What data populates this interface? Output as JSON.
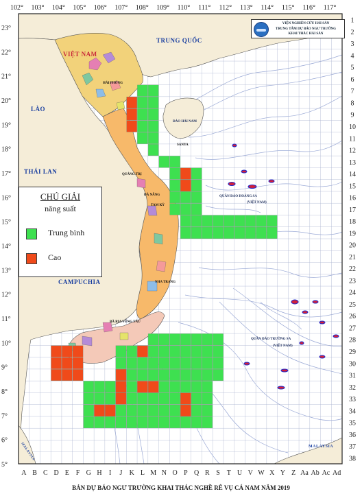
{
  "title": "BẢN DỰ BÁO NGƯ TRƯỜNG KHAI THÁC NGHỀ RÊ VỤ CÁ NAM NĂM 2019",
  "logo": {
    "line1": "VIỆN NGHIÊN CỨU HẢI SẢN",
    "line2": "TRUNG TÂM DỰ BÁO NGƯ TRƯỜNG",
    "line3": "KHAI THÁC HẢI SẢN",
    "icon": "institute-logo-icon"
  },
  "legend": {
    "title": "CHÚ GIẢI",
    "subtitle": "năng suất",
    "items": [
      {
        "label": "Trung bình",
        "color": "#3ee050"
      },
      {
        "label": "Cao",
        "color": "#f04a1a"
      }
    ]
  },
  "axes": {
    "lon_labels": [
      "102°",
      "103°",
      "104°",
      "105°",
      "106°",
      "107°",
      "108°",
      "109°",
      "110°",
      "111°",
      "112°",
      "113°",
      "114°",
      "115°",
      "116°",
      "117°"
    ],
    "lat_labels": [
      "23°",
      "22°",
      "21°",
      "20°",
      "19°",
      "18°",
      "17°",
      "16°",
      "15°",
      "14°",
      "13°",
      "12°",
      "11°",
      "10°",
      "9°",
      "8°",
      "7°",
      "6°",
      "5°"
    ],
    "col_labels": [
      "A",
      "B",
      "C",
      "D",
      "E",
      "F",
      "G",
      "H",
      "I",
      "J",
      "K",
      "L",
      "M",
      "N",
      "O",
      "P",
      "Q",
      "R",
      "S",
      "T",
      "U",
      "V",
      "W",
      "X",
      "Y",
      "Z",
      "Aa",
      "Ab",
      "Ac",
      "Ad"
    ],
    "row_labels": [
      "1",
      "2",
      "3",
      "4",
      "5",
      "6",
      "7",
      "8",
      "9",
      "10",
      "11",
      "12",
      "13",
      "14",
      "15",
      "16",
      "17",
      "18",
      "19",
      "20",
      "21",
      "22",
      "23",
      "24",
      "25",
      "26",
      "27",
      "28",
      "29",
      "30",
      "31",
      "32",
      "33",
      "34",
      "35",
      "36",
      "37",
      "38"
    ]
  },
  "countries": [
    {
      "name": "TRUNG QUỐC"
    },
    {
      "name": "VIỆT NAM"
    },
    {
      "name": "LÀO"
    },
    {
      "name": "THÁI LAN"
    },
    {
      "name": "CAMPUCHIA"
    },
    {
      "name": "MALAYSIA"
    },
    {
      "name": "MALAYSIA"
    }
  ],
  "islands": [
    {
      "name": "ĐẢO HẢI NAM"
    },
    {
      "name": "QUẦN ĐẢO HOÀNG SA"
    },
    {
      "name": "(VIỆT NAM)"
    },
    {
      "name": "QUẦN ĐẢO TRƯỜNG SA"
    },
    {
      "name": "(VIỆT NAM)"
    }
  ],
  "cities": [
    "HẢI PHÒNG",
    "NHA TRANG",
    "BÀ RỊA VŨNG TÀU",
    "QUẢNG TRỊ",
    "ĐÀ NẴNG",
    "TAM KỲ",
    "SANYA"
  ],
  "forecast": {
    "grid": "half-degree",
    "cells": [
      {
        "cols": [
          "L",
          "M"
        ],
        "rows": [
          7,
          7
        ],
        "level": "medium"
      },
      {
        "cols": [
          "K",
          "M"
        ],
        "rows": [
          8,
          8
        ],
        "level": "medium"
      },
      {
        "cols": [
          "K",
          "K"
        ],
        "rows": [
          8,
          10
        ],
        "level": "high"
      },
      {
        "cols": [
          "L",
          "M"
        ],
        "rows": [
          9,
          10
        ],
        "level": "medium"
      },
      {
        "cols": [
          "L",
          "M"
        ],
        "rows": [
          11,
          11
        ],
        "level": "medium"
      },
      {
        "cols": [
          "M",
          "M"
        ],
        "rows": [
          12,
          12
        ],
        "level": "medium"
      },
      {
        "cols": [
          "N",
          "O"
        ],
        "rows": [
          13,
          13
        ],
        "level": "medium"
      },
      {
        "cols": [
          "O",
          "O"
        ],
        "rows": [
          14,
          14
        ],
        "level": "medium"
      },
      {
        "cols": [
          "P",
          "Q"
        ],
        "rows": [
          14,
          14
        ],
        "level": "medium"
      },
      {
        "cols": [
          "P",
          "P"
        ],
        "rows": [
          14,
          15
        ],
        "level": "high"
      },
      {
        "cols": [
          "O",
          "Q"
        ],
        "rows": [
          15,
          17
        ],
        "level": "medium"
      },
      {
        "cols": [
          "P",
          "X"
        ],
        "rows": [
          18,
          19
        ],
        "level": "medium"
      },
      {
        "cols": [
          "M",
          "S"
        ],
        "rows": [
          28,
          28
        ],
        "level": "medium"
      },
      {
        "cols": [
          "J",
          "S"
        ],
        "rows": [
          29,
          31
        ],
        "level": "medium"
      },
      {
        "cols": [
          "G",
          "R"
        ],
        "rows": [
          32,
          35
        ],
        "level": "medium"
      },
      {
        "cols": [
          "D",
          "F"
        ],
        "rows": [
          29,
          31
        ],
        "level": "high"
      },
      {
        "cols": [
          "J",
          "J"
        ],
        "rows": [
          31,
          33
        ],
        "level": "high"
      },
      {
        "cols": [
          "L",
          "M"
        ],
        "rows": [
          32,
          32
        ],
        "level": "high"
      },
      {
        "cols": [
          "H",
          "I"
        ],
        "rows": [
          34,
          34
        ],
        "level": "high"
      },
      {
        "cols": [
          "P",
          "P"
        ],
        "rows": [
          33,
          34
        ],
        "level": "high"
      },
      {
        "cols": [
          "L",
          "L"
        ],
        "rows": [
          29,
          29
        ],
        "level": "high"
      }
    ]
  }
}
